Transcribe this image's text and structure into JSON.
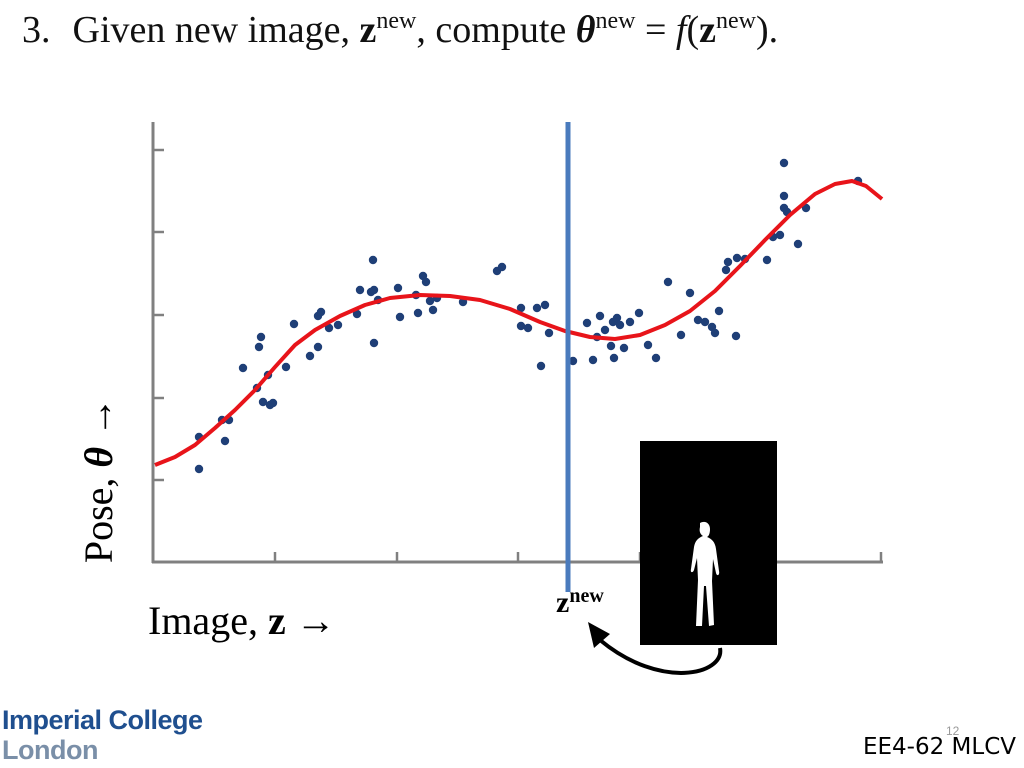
{
  "slide": {
    "title": {
      "number": "3.",
      "segments": [
        "Given new image, ",
        "z",
        "new",
        ", compute ",
        "θ",
        "new",
        " = ",
        "f",
        "(",
        "z",
        "new",
        ")."
      ]
    },
    "figure": {
      "y_label": [
        "Pose, ",
        "θ",
        " →"
      ],
      "x_label": [
        "Image, ",
        "z",
        " →"
      ],
      "marker_label": [
        "z",
        "new"
      ]
    },
    "logo": [
      "Imperial College",
      "London"
    ],
    "page_number": "12",
    "course": "EE4-62 MLCV"
  }
}
